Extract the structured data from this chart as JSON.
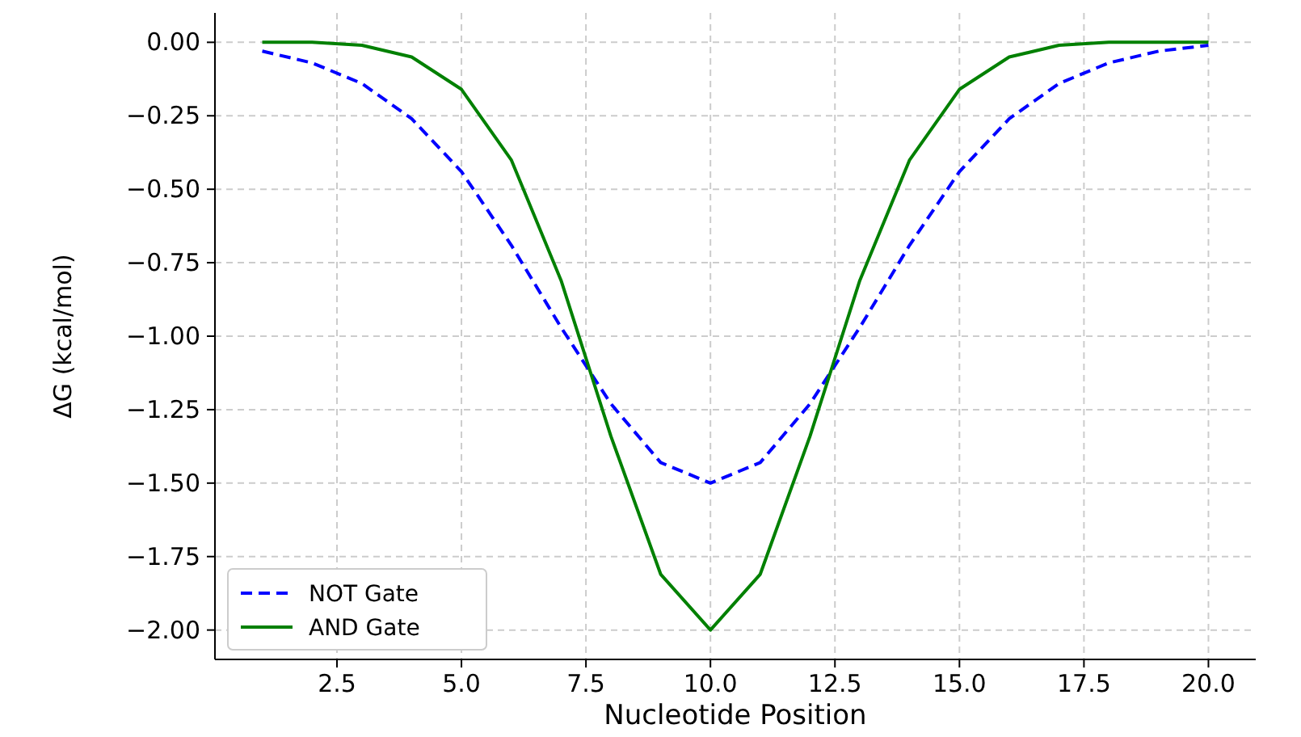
{
  "chart_data": {
    "type": "line",
    "xlabel": "Nucleotide Position",
    "ylabel": "ΔG (kcal/mol)",
    "x": [
      1,
      2,
      3,
      4,
      5,
      6,
      7,
      8,
      9,
      10,
      11,
      12,
      13,
      14,
      15,
      16,
      17,
      18,
      19,
      20
    ],
    "series": [
      {
        "name": "NOT Gate",
        "color": "#0000ff",
        "line_style": "dashed",
        "values": [
          -0.03,
          -0.07,
          -0.14,
          -0.26,
          -0.44,
          -0.69,
          -0.97,
          -1.23,
          -1.43,
          -1.5,
          -1.43,
          -1.23,
          -0.97,
          -0.69,
          -0.44,
          -0.26,
          -0.14,
          -0.07,
          -0.03,
          -0.01
        ]
      },
      {
        "name": "AND Gate",
        "color": "#008000",
        "line_style": "solid",
        "values": [
          0,
          0,
          -0.01,
          -0.05,
          -0.16,
          -0.4,
          -0.81,
          -1.34,
          -1.81,
          -2,
          -1.81,
          -1.34,
          -0.81,
          -0.4,
          -0.16,
          -0.05,
          -0.01,
          0,
          0,
          0
        ]
      }
    ],
    "xlim": [
      0.05,
      20.95
    ],
    "ylim": [
      -2.1,
      0.1
    ],
    "xticks": [
      {
        "value": 2.5,
        "label": "2.5"
      },
      {
        "value": 5,
        "label": "5.0"
      },
      {
        "value": 7.5,
        "label": "7.5"
      },
      {
        "value": 10,
        "label": "10.0"
      },
      {
        "value": 12.5,
        "label": "12.5"
      },
      {
        "value": 15,
        "label": "15.0"
      },
      {
        "value": 17.5,
        "label": "17.5"
      },
      {
        "value": 20,
        "label": "20.0"
      }
    ],
    "yticks": [
      {
        "value": -2,
        "label": "−2.00"
      },
      {
        "value": -1.75,
        "label": "−1.75"
      },
      {
        "value": -1.5,
        "label": "−1.50"
      },
      {
        "value": -1.25,
        "label": "−1.25"
      },
      {
        "value": -1,
        "label": "−1.00"
      },
      {
        "value": -0.75,
        "label": "−0.75"
      },
      {
        "value": -0.5,
        "label": "−0.50"
      },
      {
        "value": -0.25,
        "label": "−0.25"
      },
      {
        "value": 0,
        "label": "0.00"
      }
    ],
    "grid": true,
    "legend": "bottom left",
    "marker": "none"
  }
}
